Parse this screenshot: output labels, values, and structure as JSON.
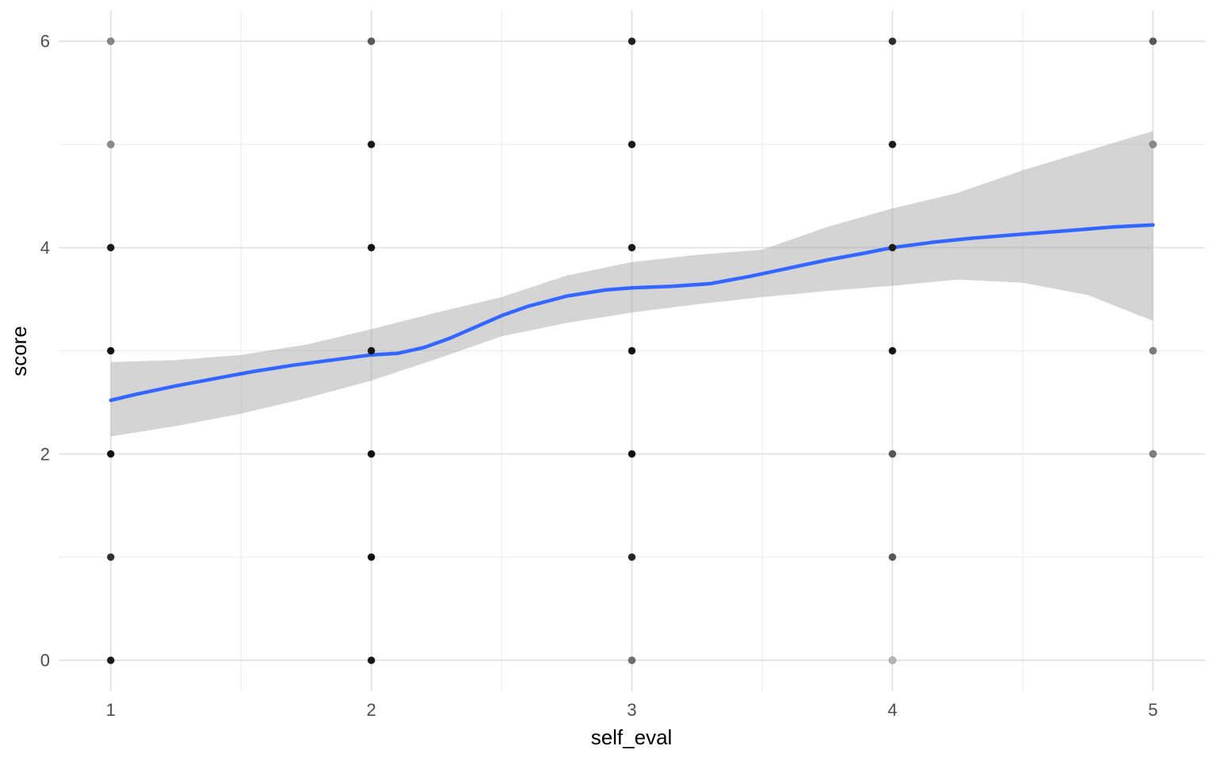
{
  "axes": {
    "x_label": "self_eval",
    "y_label": "score",
    "x_tick_labels": [
      "1",
      "2",
      "3",
      "4",
      "5"
    ],
    "x_tick_values": [
      1,
      2,
      3,
      4,
      5
    ],
    "y_tick_labels": [
      "0",
      "2",
      "4",
      "6"
    ],
    "y_tick_values": [
      0,
      2,
      4,
      6
    ],
    "x_minor_values": [
      1.5,
      2.5,
      3.5,
      4.5
    ],
    "y_minor_values": [
      1,
      3,
      5
    ],
    "xlim": [
      0.8,
      5.2
    ],
    "ylim": [
      -0.3,
      6.3
    ],
    "grid": "on",
    "legend": "none"
  },
  "chart_data": {
    "type": "scatter",
    "title": "",
    "xlabel": "self_eval",
    "ylabel": "score",
    "points_note": "semi-transparent black points stacked at integer grid positions; shade encodes overplot density",
    "points": [
      [
        1,
        0,
        "#1a1a1a"
      ],
      [
        1,
        1,
        "#2e2e2e"
      ],
      [
        1,
        2,
        "#121212"
      ],
      [
        1,
        3,
        "#121212"
      ],
      [
        1,
        4,
        "#1a1a1a"
      ],
      [
        1,
        5,
        "#8a8a8a"
      ],
      [
        1,
        6,
        "#868686"
      ],
      [
        2,
        0,
        "#161616"
      ],
      [
        2,
        1,
        "#121212"
      ],
      [
        2,
        2,
        "#121212"
      ],
      [
        2,
        3,
        "#121212"
      ],
      [
        2,
        4,
        "#121212"
      ],
      [
        2,
        5,
        "#1a1a1a"
      ],
      [
        2,
        6,
        "#595959"
      ],
      [
        3,
        0,
        "#6f6f6f"
      ],
      [
        3,
        1,
        "#262626"
      ],
      [
        3,
        2,
        "#121212"
      ],
      [
        3,
        3,
        "#121212"
      ],
      [
        3,
        4,
        "#1a1a1a"
      ],
      [
        3,
        5,
        "#1a1a1a"
      ],
      [
        3,
        6,
        "#202020"
      ],
      [
        4,
        0,
        "#b4b4b4"
      ],
      [
        4,
        1,
        "#575757"
      ],
      [
        4,
        2,
        "#575757"
      ],
      [
        4,
        3,
        "#141414"
      ],
      [
        4,
        4,
        "#1d1d1d"
      ],
      [
        4,
        5,
        "#1a1a1a"
      ],
      [
        4,
        6,
        "#2c2c2c"
      ],
      [
        5,
        2,
        "#7d7d7d"
      ],
      [
        5,
        3,
        "#7d7d7d"
      ],
      [
        5,
        5,
        "#8a8a8a"
      ],
      [
        5,
        6,
        "#585858"
      ]
    ],
    "smooth_line": {
      "name": "loess fit",
      "points": [
        [
          1.0,
          2.52
        ],
        [
          1.1,
          2.58
        ],
        [
          1.25,
          2.66
        ],
        [
          1.4,
          2.73
        ],
        [
          1.55,
          2.8
        ],
        [
          1.7,
          2.86
        ],
        [
          1.85,
          2.91
        ],
        [
          2.0,
          2.96
        ],
        [
          2.1,
          2.975
        ],
        [
          2.2,
          3.03
        ],
        [
          2.3,
          3.12
        ],
        [
          2.4,
          3.23
        ],
        [
          2.5,
          3.34
        ],
        [
          2.6,
          3.43
        ],
        [
          2.75,
          3.53
        ],
        [
          2.9,
          3.59
        ],
        [
          3.0,
          3.61
        ],
        [
          3.15,
          3.625
        ],
        [
          3.3,
          3.65
        ],
        [
          3.45,
          3.72
        ],
        [
          3.6,
          3.8
        ],
        [
          3.75,
          3.88
        ],
        [
          3.9,
          3.95
        ],
        [
          4.0,
          4.0
        ],
        [
          4.15,
          4.05
        ],
        [
          4.3,
          4.09
        ],
        [
          4.5,
          4.13
        ],
        [
          4.7,
          4.17
        ],
        [
          4.85,
          4.2
        ],
        [
          5.0,
          4.22
        ]
      ]
    },
    "ribbon": {
      "name": "95% confidence band",
      "upper": [
        [
          1.0,
          2.89
        ],
        [
          1.25,
          2.91
        ],
        [
          1.5,
          2.96
        ],
        [
          1.75,
          3.06
        ],
        [
          2.0,
          3.21
        ],
        [
          2.25,
          3.37
        ],
        [
          2.5,
          3.52
        ],
        [
          2.75,
          3.73
        ],
        [
          3.0,
          3.86
        ],
        [
          3.25,
          3.93
        ],
        [
          3.5,
          3.98
        ],
        [
          3.75,
          4.2
        ],
        [
          4.0,
          4.38
        ],
        [
          4.25,
          4.53
        ],
        [
          4.5,
          4.75
        ],
        [
          4.75,
          4.94
        ],
        [
          5.0,
          5.13
        ]
      ],
      "lower": [
        [
          1.0,
          2.17
        ],
        [
          1.25,
          2.27
        ],
        [
          1.5,
          2.39
        ],
        [
          1.75,
          2.54
        ],
        [
          2.0,
          2.71
        ],
        [
          2.25,
          2.92
        ],
        [
          2.5,
          3.14
        ],
        [
          2.75,
          3.27
        ],
        [
          3.0,
          3.37
        ],
        [
          3.25,
          3.45
        ],
        [
          3.5,
          3.52
        ],
        [
          3.75,
          3.58
        ],
        [
          4.0,
          3.63
        ],
        [
          4.25,
          3.69
        ],
        [
          4.5,
          3.66
        ],
        [
          4.75,
          3.54
        ],
        [
          5.0,
          3.29
        ]
      ]
    }
  },
  "style": {
    "background": "#ffffff",
    "grid_major": "#e2e2e2",
    "grid_minor": "#ededed",
    "smooth_line_color": "#3366ff",
    "ribbon_fill": "#999999",
    "ribbon_alpha": 0.42,
    "tick_label_color": "#4d4d4d",
    "axis_title_color": "#000000",
    "point_radius": 4.6
  }
}
